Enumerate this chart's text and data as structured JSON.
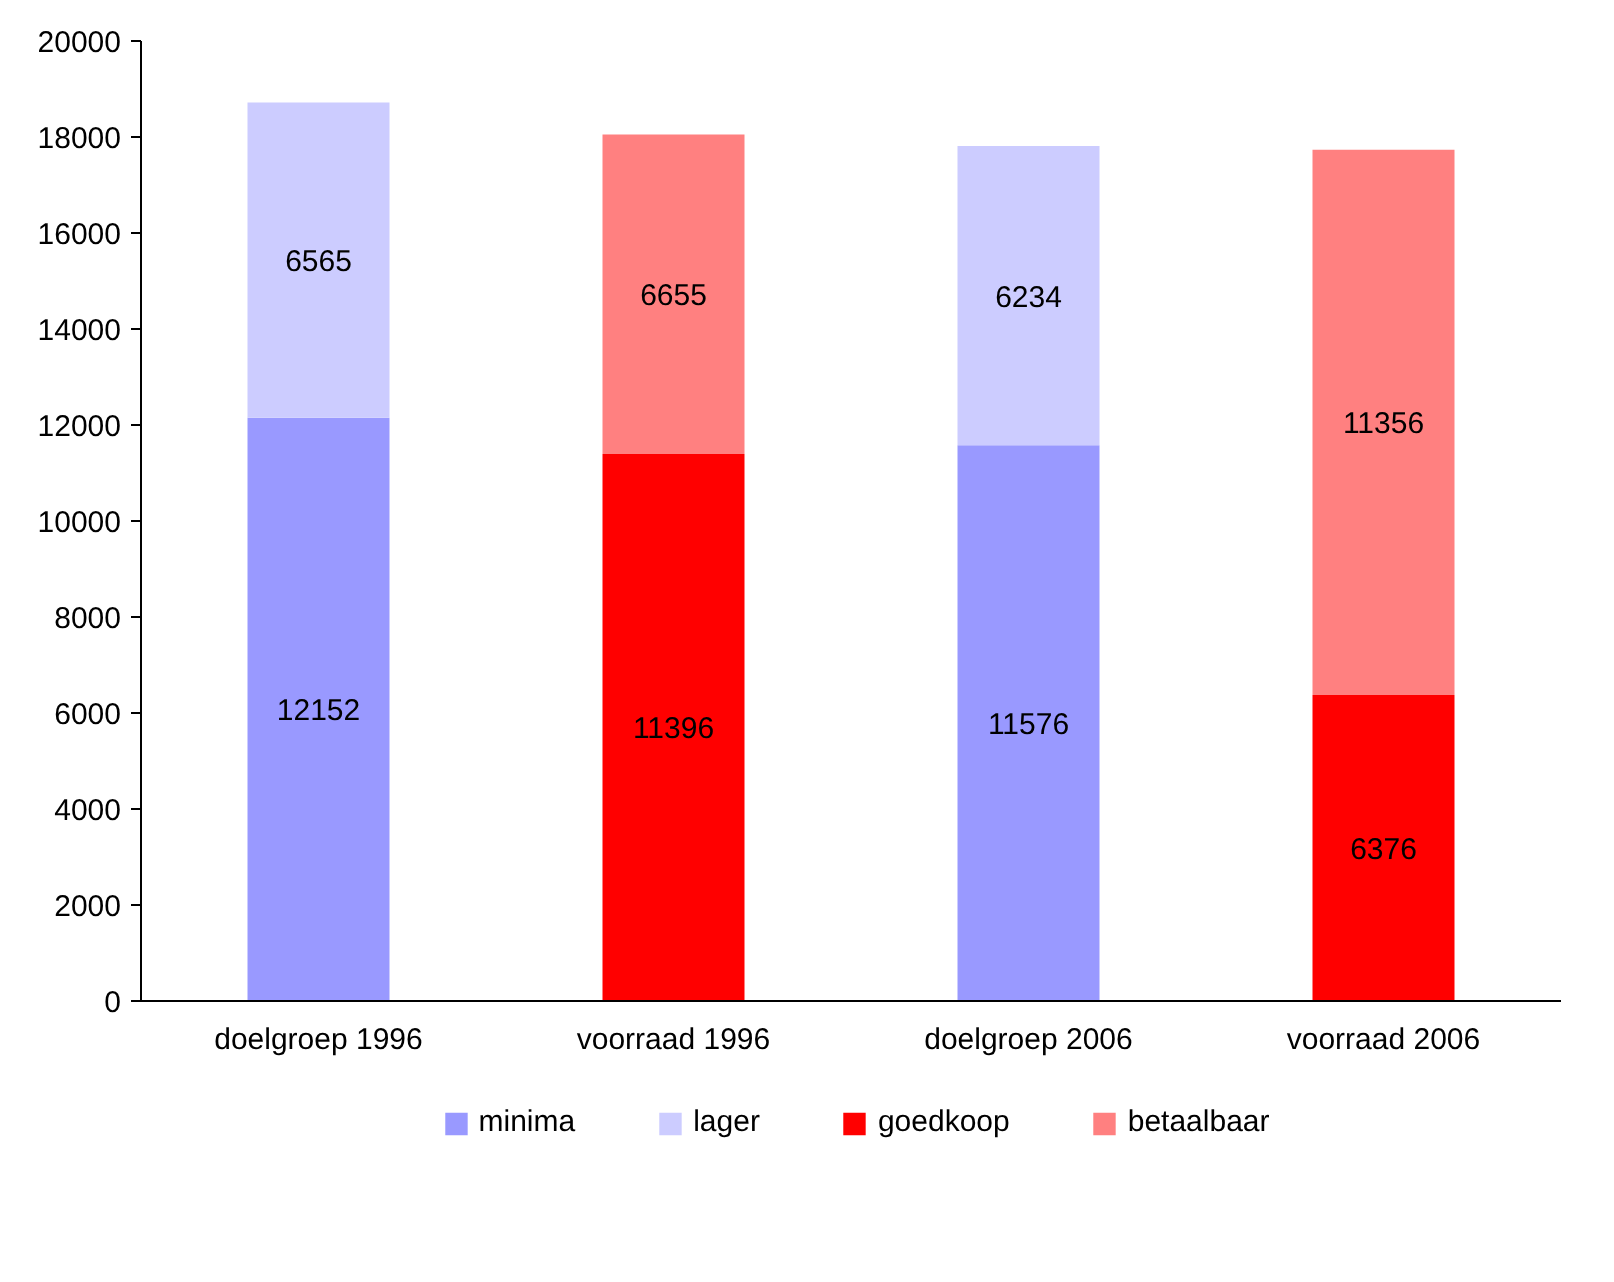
{
  "chart_data": {
    "type": "bar",
    "stacked": true,
    "categories": [
      "doelgroep 1996",
      "voorraad 1996",
      "doelgroep 2006",
      "voorraad 2006"
    ],
    "series": [
      {
        "name": "minima",
        "color": "#9999ff",
        "values": [
          12152,
          null,
          11576,
          null
        ]
      },
      {
        "name": "lager",
        "color": "#ccccff",
        "values": [
          6565,
          null,
          6234,
          null
        ]
      },
      {
        "name": "goedkoop",
        "color": "#ff0000",
        "values": [
          null,
          11396,
          null,
          6376
        ]
      },
      {
        "name": "betaalbaar",
        "color": "#ff8080",
        "values": [
          null,
          6655,
          null,
          11356
        ]
      }
    ],
    "ylim": [
      0,
      20000
    ],
    "yticks": [
      0,
      2000,
      4000,
      6000,
      8000,
      10000,
      12000,
      14000,
      16000,
      18000,
      20000
    ],
    "grid": false,
    "legend": "bottom",
    "data_labels": true
  }
}
